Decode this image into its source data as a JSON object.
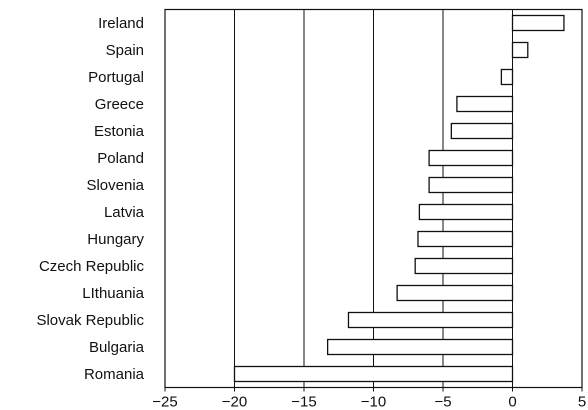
{
  "chart_data": {
    "type": "bar",
    "orientation": "horizontal",
    "title": "",
    "xlabel": "",
    "ylabel": "",
    "categories": [
      "Ireland",
      "Spain",
      "Portugal",
      "Greece",
      "Estonia",
      "Poland",
      "Slovenia",
      "Latvia",
      "Hungary",
      "Czech Republic",
      "LIthuania",
      "Slovak Republic",
      "Bulgaria",
      "Romania"
    ],
    "values": [
      3.7,
      1.1,
      -0.8,
      -4.0,
      -4.4,
      -6.0,
      -6.0,
      -6.7,
      -6.8,
      -7.0,
      -8.3,
      -11.8,
      -13.3,
      -20.0
    ],
    "xlim": [
      -25,
      5
    ],
    "xticks": [
      -25,
      -20,
      -15,
      -10,
      -5,
      0,
      5
    ],
    "xtick_labels": [
      "−25",
      "−20",
      "−15",
      "−10",
      "−5",
      "0",
      "5"
    ],
    "grid": "vertical lines at x ticks",
    "legend": "none",
    "bar_fill": "#ffffff",
    "bar_stroke": "#111111"
  }
}
